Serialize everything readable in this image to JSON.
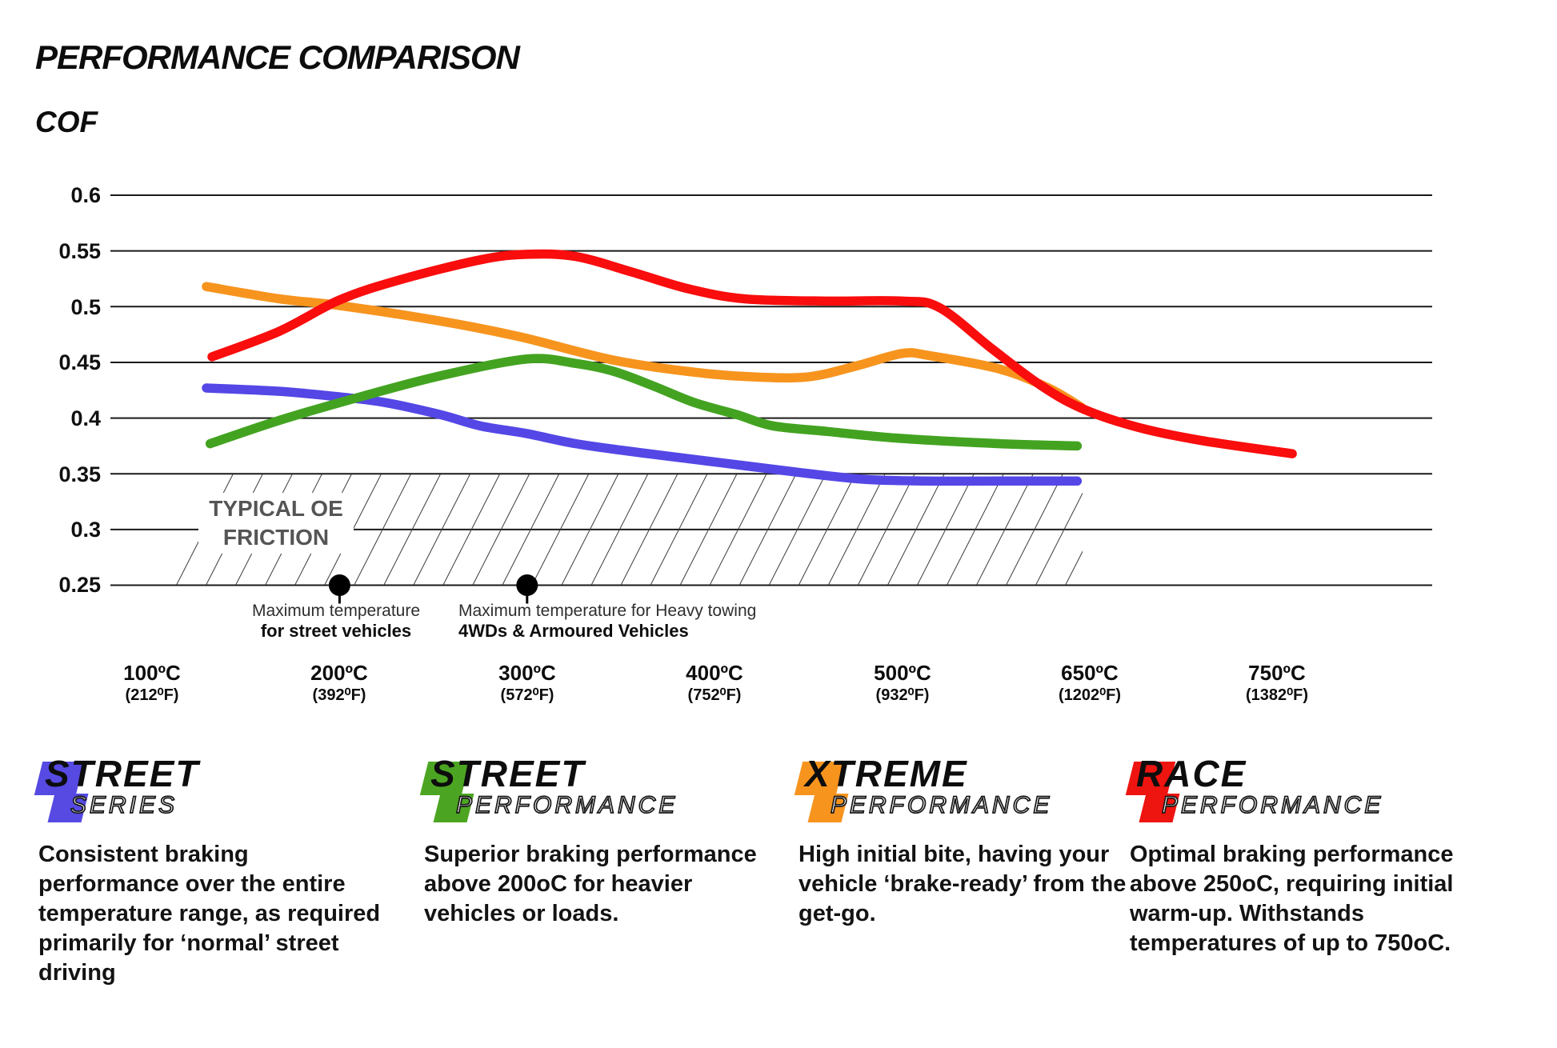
{
  "header": {
    "title": "PERFORMANCE COMPARISON",
    "y_axis_title": "COF"
  },
  "chart_data": {
    "type": "line",
    "title": "PERFORMANCE COMPARISON",
    "ylabel": "COF",
    "ylim": [
      0.25,
      0.6
    ],
    "grid": "horizontal-only",
    "x_axis": {
      "unit": "degrees C",
      "breakpoints": [
        100,
        200,
        300,
        400,
        500,
        650,
        750
      ]
    },
    "xticks": [
      {
        "c": "100ºC",
        "f": "(212⁰F)"
      },
      {
        "c": "200ºC",
        "f": "(392⁰F)"
      },
      {
        "c": "300ºC",
        "f": "(572⁰F)"
      },
      {
        "c": "400ºC",
        "f": "(752⁰F)"
      },
      {
        "c": "500ºC",
        "f": "(932⁰F)"
      },
      {
        "c": "650ºC",
        "f": "(1202⁰F)"
      },
      {
        "c": "750ºC",
        "f": "(1382⁰F)"
      }
    ],
    "yticks": [
      0.6,
      0.55,
      0.5,
      0.45,
      0.4,
      0.35,
      0.3,
      0.25
    ],
    "ytick_labels": [
      "0.6",
      "0.55",
      "0.5",
      "0.45",
      "0.4",
      "0.35",
      "0.3",
      "0.25"
    ],
    "oe_zone": {
      "label_line1": "TYPICAL OE",
      "label_line2": "FRICTION",
      "cof_max": 0.35,
      "cof_min": 0.25
    },
    "series": [
      {
        "name": "Street Series",
        "color": "#5447E6",
        "points": [
          [
            129,
            0.427
          ],
          [
            168,
            0.424
          ],
          [
            200,
            0.419
          ],
          [
            224,
            0.414
          ],
          [
            254,
            0.403
          ],
          [
            275,
            0.393
          ],
          [
            300,
            0.386
          ],
          [
            326,
            0.377
          ],
          [
            360,
            0.369
          ],
          [
            403,
            0.36
          ],
          [
            446,
            0.351
          ],
          [
            480,
            0.345
          ],
          [
            520,
            0.3435
          ],
          [
            578,
            0.3435
          ],
          [
            640,
            0.3435
          ]
        ]
      },
      {
        "name": "Street Performance",
        "color": "#43A321",
        "points": [
          [
            131,
            0.377
          ],
          [
            168,
            0.398
          ],
          [
            211,
            0.419
          ],
          [
            254,
            0.438
          ],
          [
            300,
            0.453
          ],
          [
            326,
            0.449
          ],
          [
            346,
            0.442
          ],
          [
            367,
            0.429
          ],
          [
            389,
            0.414
          ],
          [
            412,
            0.403
          ],
          [
            431,
            0.393
          ],
          [
            460,
            0.388
          ],
          [
            497,
            0.382
          ],
          [
            578,
            0.377
          ],
          [
            640,
            0.375
          ]
        ]
      },
      {
        "name": "Xtreme Performance",
        "color": "#F7941E",
        "points": [
          [
            129,
            0.518
          ],
          [
            168,
            0.507
          ],
          [
            200,
            0.501
          ],
          [
            254,
            0.487
          ],
          [
            296,
            0.473
          ],
          [
            346,
            0.452
          ],
          [
            390,
            0.441
          ],
          [
            420,
            0.437
          ],
          [
            450,
            0.437
          ],
          [
            476,
            0.447
          ],
          [
            500,
            0.458
          ],
          [
            522,
            0.456
          ],
          [
            578,
            0.444
          ],
          [
            617,
            0.427
          ],
          [
            643,
            0.41
          ]
        ]
      },
      {
        "name": "Race Performance",
        "color": "#F90D0D",
        "points": [
          [
            132,
            0.455
          ],
          [
            168,
            0.478
          ],
          [
            200,
            0.506
          ],
          [
            232,
            0.524
          ],
          [
            275,
            0.542
          ],
          [
            300,
            0.547
          ],
          [
            326,
            0.545
          ],
          [
            356,
            0.531
          ],
          [
            386,
            0.516
          ],
          [
            416,
            0.507
          ],
          [
            459,
            0.505
          ],
          [
            500,
            0.505
          ],
          [
            530,
            0.499
          ],
          [
            572,
            0.462
          ],
          [
            610,
            0.43
          ],
          [
            643,
            0.409
          ],
          [
            675,
            0.392
          ],
          [
            709,
            0.38
          ],
          [
            758,
            0.368
          ]
        ]
      }
    ],
    "annotations": [
      {
        "t": 200,
        "line1": "Maximum temperature",
        "line2": "for street vehicles"
      },
      {
        "t": 300,
        "line1": "Maximum temperature for Heavy towing",
        "line2": "4WDs & Armoured Vehicles"
      }
    ]
  },
  "products": [
    {
      "word1": "STREET",
      "word2": "SERIES",
      "color": "#564AE3",
      "description": "Consistent braking performance over the entire temperature range, as required primarily for ‘normal’ street driving"
    },
    {
      "word1": "STREET",
      "word2": "PERFORMANCE",
      "color": "#4CA522",
      "description": "Superior braking performance above 200oC for heavier vehicles or loads."
    },
    {
      "word1": "XTREME",
      "word2": "PERFORMANCE",
      "color": "#F7941E",
      "description": "High initial bite, having your vehicle ‘brake-ready’ from the get-go."
    },
    {
      "word1": "RACE",
      "word2": "PERFORMANCE",
      "color": "#EE1410",
      "description": "Optimal braking performance above 250oC, requiring initial warm-up. Withstands temperatures of up to 750oC."
    }
  ]
}
